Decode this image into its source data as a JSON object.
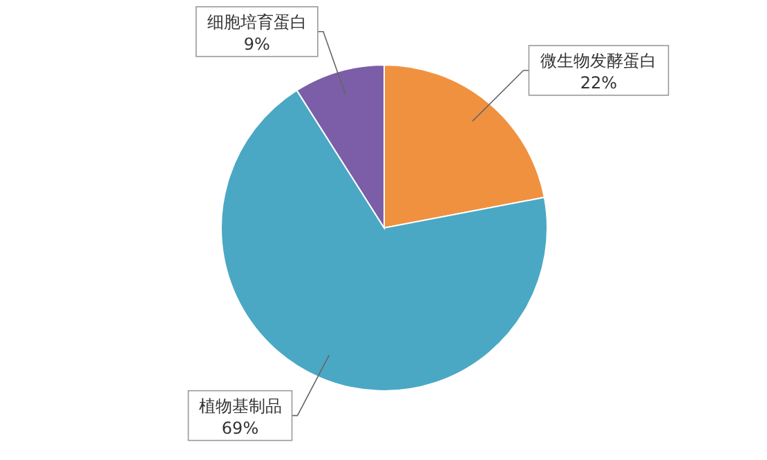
{
  "chart_data": {
    "type": "pie",
    "categories": [
      "微生物发酵蛋白",
      "植物基制品",
      "细胞培育蛋白"
    ],
    "values": [
      22,
      69,
      9
    ],
    "colors": [
      "#f0913f",
      "#4aa8c4",
      "#7b5ea7"
    ],
    "value_labels": [
      "22%",
      "69%",
      "9%"
    ]
  }
}
